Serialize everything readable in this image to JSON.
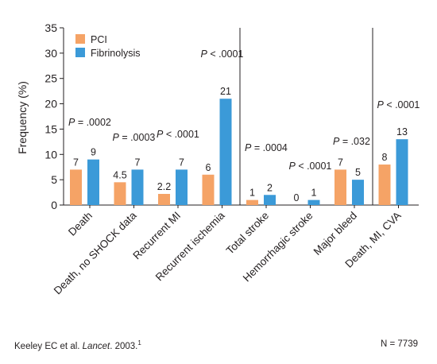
{
  "chart_data": {
    "type": "bar",
    "ylabel": "Frequency (%)",
    "xlabel": "",
    "ylim": [
      0,
      35
    ],
    "yticks": [
      0,
      5,
      10,
      15,
      20,
      25,
      30,
      35
    ],
    "legend_position": "top-left",
    "grid": false,
    "categories": [
      "Death",
      "Death, no SHOCK data",
      "Recurrent MI",
      "Recurrent ischemia",
      "Total stroke",
      "Hemorrhagic stroke",
      "Major bleed",
      "Death, MI, CVA"
    ],
    "series": [
      {
        "name": "PCI",
        "color": "#f5a366",
        "values": [
          7,
          4.5,
          2.2,
          6,
          1,
          0,
          7,
          8
        ],
        "labels": [
          "7",
          "4.5",
          "2.2",
          "6",
          "1",
          "0",
          "7",
          "8"
        ]
      },
      {
        "name": "Fibrinolysis",
        "color": "#3b9ad8",
        "values": [
          9,
          7,
          7,
          21,
          2,
          1,
          5,
          13
        ],
        "labels": [
          "9",
          "7",
          "7",
          "21",
          "2",
          "1",
          "5",
          "13"
        ]
      }
    ],
    "p_values": [
      "P = .0002",
      "P = .0003",
      "P < .0001",
      "P < .0001",
      "P = .0004",
      "P < .0001",
      "P = .032",
      "P < .0001"
    ]
  },
  "footer": {
    "citation_authors": "Keeley EC et al. ",
    "citation_journal": "Lancet",
    "citation_year": ". 2003.",
    "citation_ref": "1",
    "sample_size": "N = 7739"
  }
}
